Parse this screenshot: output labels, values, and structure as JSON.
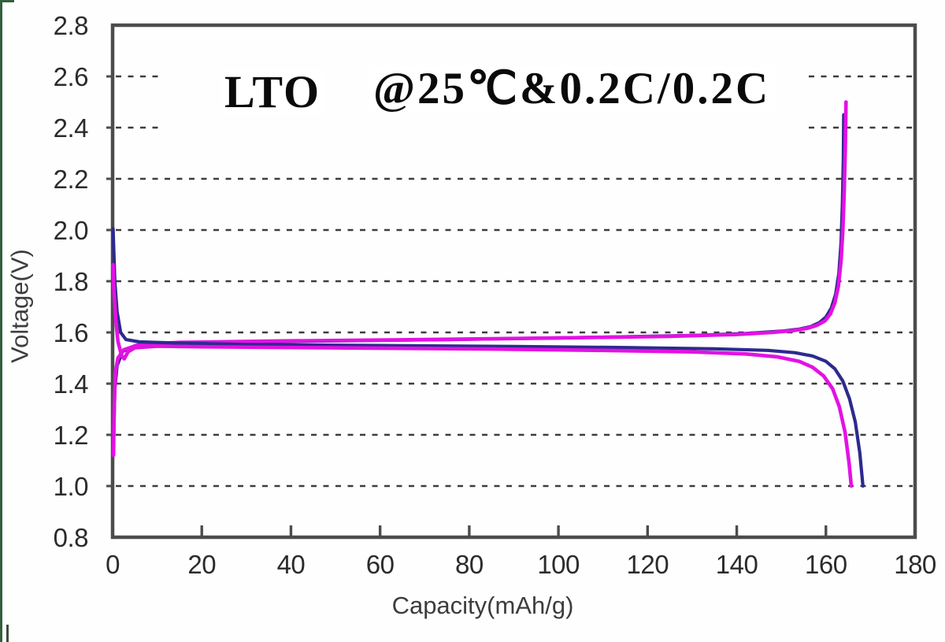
{
  "page": {
    "background": "#ffffff",
    "scan_border_color": "#33603c"
  },
  "chart_data": {
    "type": "line",
    "title_left": "LTO",
    "title_right": "@25℃&0.2C/0.2C",
    "title_full": "LTO @25℃&0.2C/0.2C",
    "xlabel": "Capacity(mAh/g)",
    "ylabel": "Voltage(V)",
    "xlim": [
      0,
      180
    ],
    "ylim": [
      0.8,
      2.8
    ],
    "x_ticks": [
      0,
      20,
      40,
      60,
      80,
      100,
      120,
      140,
      160,
      180
    ],
    "y_ticks": [
      0.8,
      1.0,
      1.2,
      1.4,
      1.6,
      1.8,
      2.0,
      2.2,
      2.4,
      2.6,
      2.8
    ],
    "grid": "horizontal-dashed",
    "gridlines_full": [
      1.0,
      1.2,
      1.4,
      1.6,
      1.8,
      2.0,
      2.2
    ],
    "gridlines_broken_by_title": [
      2.4,
      2.6
    ],
    "legend": "none",
    "frame_color": "#4c4c4c",
    "grid_color": "#3d3d3d",
    "series": [
      {
        "name": "charge-curve-blue",
        "color": "#2d2a8e",
        "width": 4.2,
        "points": [
          [
            0.2,
            1.16
          ],
          [
            0.5,
            1.38
          ],
          [
            1.0,
            1.47
          ],
          [
            2.2,
            1.525
          ],
          [
            5,
            1.548
          ],
          [
            15,
            1.558
          ],
          [
            40,
            1.565
          ],
          [
            75,
            1.572
          ],
          [
            105,
            1.58
          ],
          [
            130,
            1.588
          ],
          [
            142,
            1.596
          ],
          [
            150,
            1.605
          ],
          [
            154,
            1.613
          ],
          [
            156.5,
            1.622
          ],
          [
            158.5,
            1.638
          ],
          [
            160,
            1.66
          ],
          [
            161.2,
            1.695
          ],
          [
            162.2,
            1.75
          ],
          [
            162.9,
            1.83
          ],
          [
            163.4,
            1.95
          ],
          [
            163.7,
            2.1
          ],
          [
            163.9,
            2.28
          ],
          [
            164.0,
            2.45
          ]
        ]
      },
      {
        "name": "charge-curve-magenta",
        "color": "#e312e3",
        "width": 4.6,
        "points": [
          [
            0.2,
            1.12
          ],
          [
            0.35,
            1.3
          ],
          [
            0.6,
            1.44
          ],
          [
            1.2,
            1.5
          ],
          [
            2.5,
            1.532
          ],
          [
            6,
            1.553
          ],
          [
            15,
            1.561
          ],
          [
            35,
            1.566
          ],
          [
            70,
            1.572
          ],
          [
            100,
            1.578
          ],
          [
            125,
            1.585
          ],
          [
            140,
            1.592
          ],
          [
            148,
            1.6
          ],
          [
            153,
            1.608
          ],
          [
            156,
            1.617
          ],
          [
            158,
            1.628
          ],
          [
            159.8,
            1.645
          ],
          [
            161,
            1.672
          ],
          [
            162,
            1.715
          ],
          [
            162.8,
            1.78
          ],
          [
            163.4,
            1.88
          ],
          [
            163.8,
            2.0
          ],
          [
            164.1,
            2.15
          ],
          [
            164.35,
            2.32
          ],
          [
            164.5,
            2.5
          ]
        ]
      },
      {
        "name": "discharge-curve-blue",
        "color": "#2d2a8e",
        "width": 4.2,
        "points": [
          [
            0.1,
            2.005
          ],
          [
            0.25,
            1.93
          ],
          [
            0.5,
            1.8
          ],
          [
            1.0,
            1.68
          ],
          [
            1.8,
            1.6
          ],
          [
            3,
            1.572
          ],
          [
            6,
            1.563
          ],
          [
            15,
            1.558
          ],
          [
            30,
            1.553
          ],
          [
            60,
            1.549
          ],
          [
            90,
            1.545
          ],
          [
            115,
            1.541
          ],
          [
            135,
            1.536
          ],
          [
            147,
            1.53
          ],
          [
            153,
            1.521
          ],
          [
            157,
            1.508
          ],
          [
            160,
            1.487
          ],
          [
            162,
            1.458
          ],
          [
            163.8,
            1.41
          ],
          [
            165.3,
            1.34
          ],
          [
            166.6,
            1.25
          ],
          [
            167.6,
            1.13
          ],
          [
            168.3,
            1.0
          ]
        ]
      },
      {
        "name": "discharge-curve-magenta",
        "color": "#e312e3",
        "width": 4.6,
        "points": [
          [
            0.1,
            1.865
          ],
          [
            0.3,
            1.76
          ],
          [
            0.7,
            1.65
          ],
          [
            1.2,
            1.565
          ],
          [
            2.0,
            1.51
          ],
          [
            2.6,
            1.497
          ],
          [
            3.5,
            1.525
          ],
          [
            5,
            1.54
          ],
          [
            10,
            1.546
          ],
          [
            25,
            1.543
          ],
          [
            55,
            1.539
          ],
          [
            85,
            1.535
          ],
          [
            110,
            1.53
          ],
          [
            130,
            1.524
          ],
          [
            142,
            1.516
          ],
          [
            149,
            1.505
          ],
          [
            154,
            1.487
          ],
          [
            157,
            1.464
          ],
          [
            159.5,
            1.43
          ],
          [
            161.5,
            1.38
          ],
          [
            163,
            1.31
          ],
          [
            164.3,
            1.21
          ],
          [
            165.2,
            1.09
          ],
          [
            165.7,
            1.0
          ]
        ]
      }
    ]
  }
}
